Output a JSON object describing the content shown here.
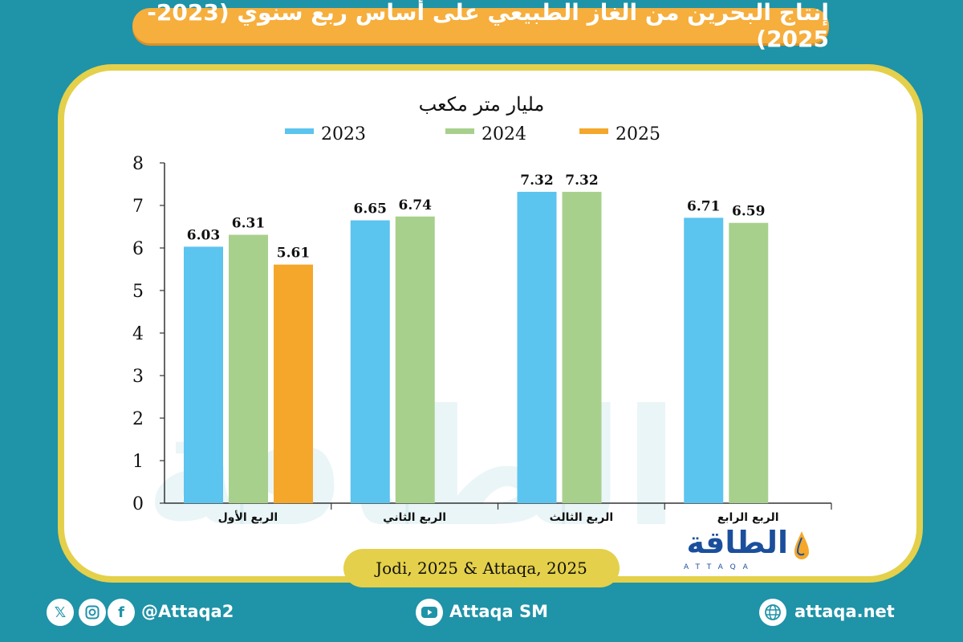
{
  "header": {
    "title": "إنتاج البحرين من الغاز الطبيعي على أساس ربع سنوي (2023-2025)"
  },
  "chart_data": {
    "type": "bar",
    "subtitle": "مليار متر مكعب",
    "categories": [
      "الربع الأول",
      "الربع الثاني",
      "الربع الثالث",
      "الربع الرابع"
    ],
    "series": [
      {
        "name": "2023",
        "color": "#5bc4ef",
        "values": [
          6.03,
          6.65,
          7.32,
          6.71
        ]
      },
      {
        "name": "2024",
        "color": "#a8d08d",
        "values": [
          6.31,
          6.74,
          7.32,
          6.59
        ]
      },
      {
        "name": "2025",
        "color": "#f4a72a",
        "values": [
          5.61,
          null,
          null,
          null
        ]
      }
    ],
    "ylim": [
      0,
      8
    ],
    "yticks": [
      0,
      1,
      2,
      3,
      4,
      5,
      6,
      7,
      8
    ],
    "grid": false,
    "legend": "top"
  },
  "source": "Jodi, 2025 & Attaqa, 2025",
  "logo": {
    "arabic": "الطاقة",
    "latin": "ATTAQA"
  },
  "watermark": "الطاقة",
  "footer": {
    "social_handle": "@Attaqa2",
    "youtube": "Attaqa SM",
    "website": "attaqa.net",
    "icons": [
      "x-icon",
      "instagram-icon",
      "facebook-icon",
      "youtube-icon",
      "globe-icon"
    ]
  }
}
